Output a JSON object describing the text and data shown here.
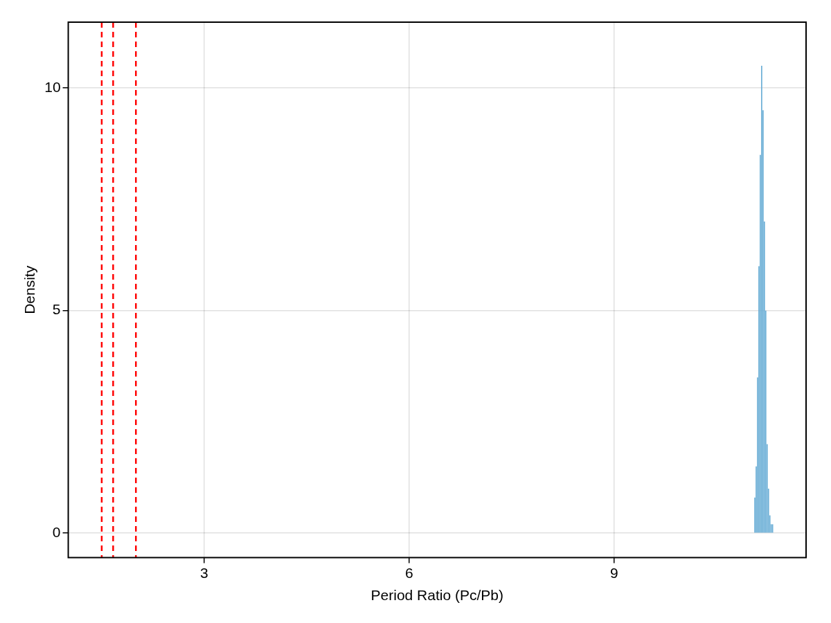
{
  "chart_data": {
    "type": "histogram",
    "xlabel": "Period Ratio (Pc/Pb)",
    "ylabel": "Density",
    "bins": [
      11.05,
      11.07,
      11.09,
      11.11,
      11.13,
      11.15,
      11.17,
      11.19,
      11.21,
      11.23,
      11.25,
      11.27,
      11.29,
      11.31,
      11.33
    ],
    "values": [
      0.8,
      1.5,
      3.5,
      6.0,
      8.5,
      10.5,
      9.5,
      7.0,
      5.0,
      2.0,
      1.0,
      0.4,
      0.2,
      0.2
    ],
    "color": "#6aaed6",
    "xlim": [
      1.01,
      11.81
    ],
    "ylim": [
      -0.55,
      11.48
    ],
    "xticks": [
      3,
      6,
      9
    ],
    "yticks": [
      0,
      5,
      10
    ],
    "grid": true,
    "legend": false,
    "ref_lines": [
      {
        "axis": "x",
        "value": 1.5,
        "color": "#ff0000",
        "line_style": "dashed"
      },
      {
        "axis": "x",
        "value": 1.667,
        "color": "#ff0000",
        "line_style": "dashed"
      },
      {
        "axis": "x",
        "value": 2.0,
        "color": "#ff0000",
        "line_style": "dashed"
      }
    ]
  }
}
